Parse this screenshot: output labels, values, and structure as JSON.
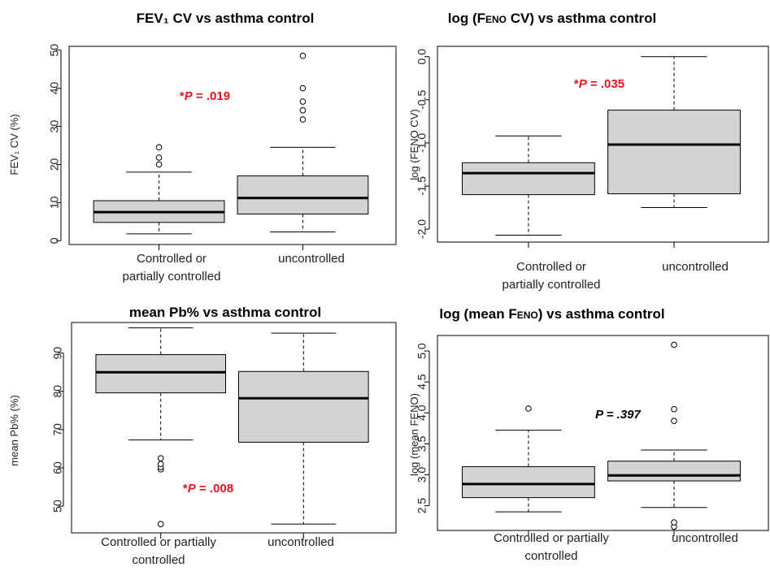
{
  "chart_data": [
    {
      "type": "boxplot",
      "title": "FEV₁ CV  vs  asthma control",
      "ylabel": "FEV₁ CV (%)",
      "ylim": [
        -1,
        51
      ],
      "yticks": [
        0,
        10,
        20,
        30,
        40,
        50
      ],
      "categories": [
        "Controlled or|partially controlled",
        "uncontrolled"
      ],
      "boxes": [
        {
          "min": 1.8,
          "q1": 4.8,
          "median": 7.5,
          "q3": 10.5,
          "max": 18.0,
          "outliers": [
            20.0,
            21.8,
            24.5
          ]
        },
        {
          "min": 2.3,
          "q1": 7.0,
          "median": 11.2,
          "q3": 17.0,
          "max": 24.5,
          "outliers": [
            31.8,
            34.2,
            36.5,
            40.0,
            48.5
          ]
        }
      ],
      "annotation": "*P = .019",
      "annotation_color": "#e8141b"
    },
    {
      "type": "boxplot",
      "title": "log (FENO CV)  vs  asthma control",
      "ylabel": "log (FENO CV)",
      "ylim": [
        -2.15,
        0.12
      ],
      "yticks": [
        0.0,
        -0.5,
        -1.0,
        -1.5,
        -2.0
      ],
      "categories": [
        "Controlled or|partially controlled",
        "uncontrolled"
      ],
      "boxes": [
        {
          "min": -2.07,
          "q1": -1.6,
          "median": -1.35,
          "q3": -1.23,
          "max": -0.92,
          "outliers": []
        },
        {
          "min": -1.75,
          "q1": -1.59,
          "median": -1.02,
          "q3": -0.62,
          "max": 0.0,
          "outliers": []
        }
      ],
      "annotation": "*P = .035",
      "annotation_color": "#e8141b"
    },
    {
      "type": "boxplot",
      "title": "mean Pb%  vs  asthma control",
      "ylabel": "mean Pb% (%)",
      "ylim": [
        43,
        98
      ],
      "yticks": [
        50,
        60,
        70,
        80,
        90
      ],
      "categories": [
        "Controlled or partially|controlled",
        "uncontrolled"
      ],
      "boxes": [
        {
          "min": 67.3,
          "q1": 79.6,
          "median": 85.0,
          "q3": 89.6,
          "max": 96.6,
          "outliers": [
            45.3,
            59.6,
            60.2,
            61.0,
            62.5
          ]
        },
        {
          "min": 45.3,
          "q1": 66.7,
          "median": 78.2,
          "q3": 85.2,
          "max": 95.2,
          "outliers": []
        }
      ],
      "annotation": "*P = .008",
      "annotation_color": "#e8141b"
    },
    {
      "type": "boxplot",
      "title": "log (mean FENO)  vs  asthma control",
      "ylabel": "log (mean FENO)",
      "ylim": [
        2.1,
        5.25
      ],
      "yticks": [
        2.5,
        3.0,
        3.5,
        4.0,
        4.5,
        5.0
      ],
      "categories": [
        "Controlled or partially|controlled",
        "uncontrolled"
      ],
      "boxes": [
        {
          "min": 2.4,
          "q1": 2.63,
          "median": 2.85,
          "q3": 3.13,
          "max": 3.72,
          "outliers": [
            4.07
          ]
        },
        {
          "min": 2.47,
          "q1": 2.9,
          "median": 2.99,
          "q3": 3.22,
          "max": 3.4,
          "outliers": [
            2.16,
            2.23,
            3.87,
            4.06,
            5.1
          ]
        }
      ],
      "annotation": "P = .397",
      "annotation_color": "#000000"
    }
  ]
}
